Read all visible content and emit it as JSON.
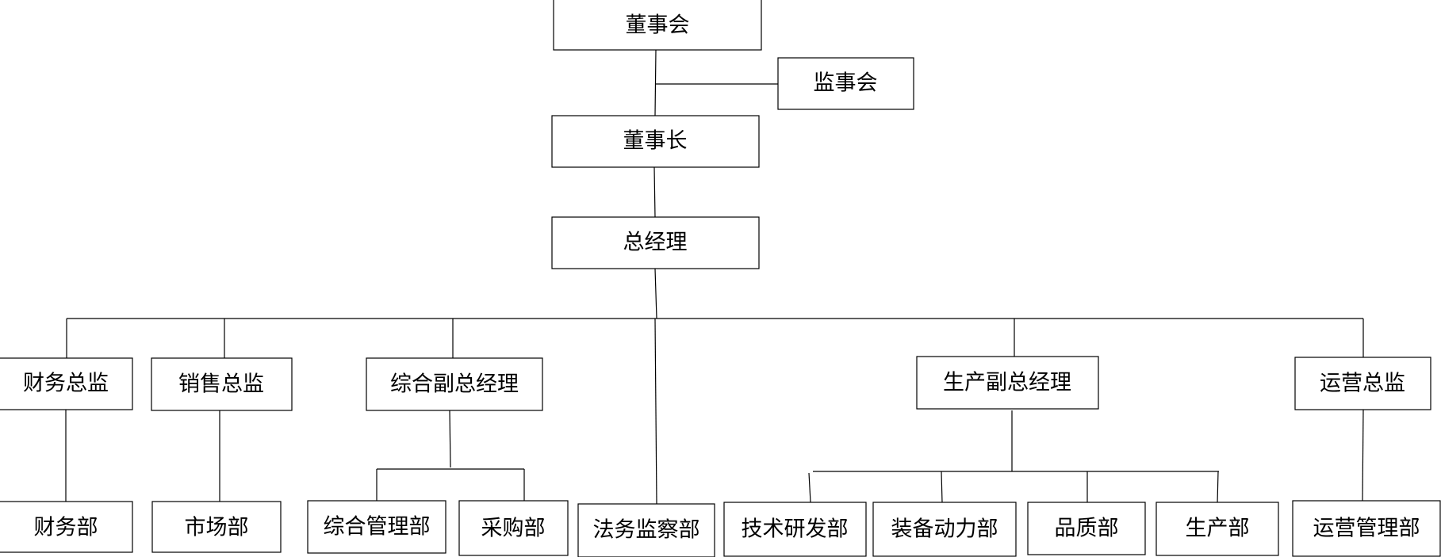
{
  "nodes": {
    "board": "董事会",
    "supervisory": "监事会",
    "chairman": "董事长",
    "gm": "总经理",
    "cfo": "财务总监",
    "sales_dir": "销售总监",
    "admin_vp": "综合副总经理",
    "legal": "法务监察部",
    "prod_vp": "生产副总经理",
    "ops_dir": "运营总监",
    "finance": "财务部",
    "market": "市场部",
    "admin_mgmt": "综合管理部",
    "purchasing": "采购部",
    "rnd": "技术研发部",
    "equipment": "装备动力部",
    "quality": "品质部",
    "production": "生产部",
    "ops_mgmt": "运营管理部"
  },
  "colors": {
    "line": "#000000",
    "box_fill": "#ffffff",
    "text": "#000000"
  }
}
